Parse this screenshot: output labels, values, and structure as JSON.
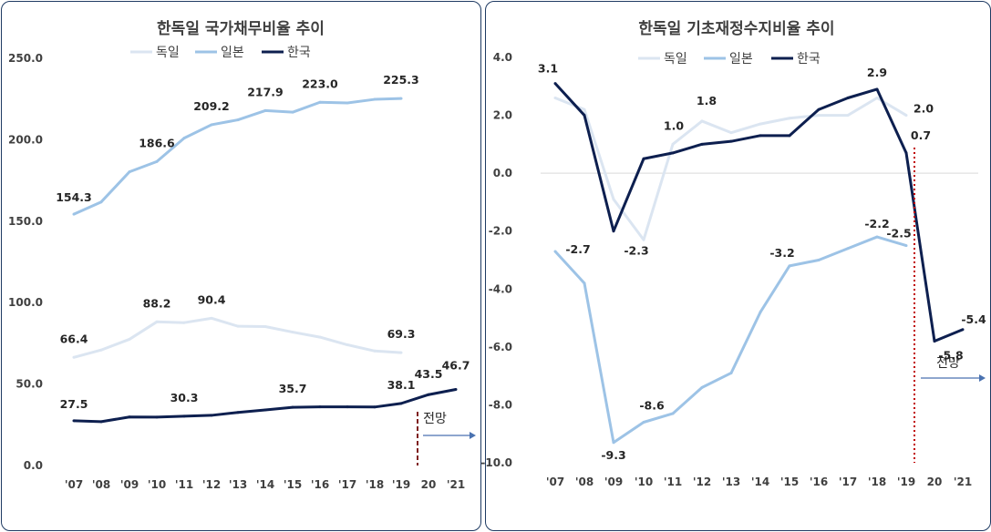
{
  "chart_data": [
    {
      "type": "line",
      "title": "한독일 국가채무비율 추이",
      "categories": [
        "'07",
        "'08",
        "'09",
        "'10",
        "'11",
        "'12",
        "'13",
        "'14",
        "'15",
        "'16",
        "'17",
        "'18",
        "'19",
        "20",
        "'21"
      ],
      "ylim": [
        0,
        250
      ],
      "yticks": [
        "0.0",
        "50.0",
        "100.0",
        "150.0",
        "200.0",
        "250.0"
      ],
      "grid": false,
      "legend_position": "top",
      "series": [
        {
          "name": "독일",
          "color": "#dbe5f1",
          "values": [
            66.4,
            70.9,
            77.5,
            88.2,
            87.7,
            90.4,
            85.5,
            85.3,
            81.9,
            78.8,
            74.1,
            70.3,
            69.3,
            null,
            null
          ],
          "labels": [
            [
              "66.4",
              0
            ],
            [
              "88.2",
              3
            ],
            [
              "90.4",
              5
            ],
            [
              "69.3",
              12
            ]
          ]
        },
        {
          "name": "일본",
          "color": "#9dc3e6",
          "values": [
            154.3,
            161.8,
            180.3,
            186.6,
            201.0,
            209.2,
            212.2,
            217.9,
            216.9,
            223.0,
            222.6,
            224.8,
            225.3,
            null,
            null
          ],
          "labels": [
            [
              "154.3",
              0
            ],
            [
              "186.6",
              3
            ],
            [
              "209.2",
              5
            ],
            [
              "217.9",
              7
            ],
            [
              "223.0",
              9
            ],
            [
              "225.3",
              12
            ]
          ]
        },
        {
          "name": "한국",
          "color": "#0d1f4f",
          "values": [
            27.5,
            26.9,
            29.8,
            29.7,
            30.3,
            30.8,
            32.6,
            34.1,
            35.7,
            36.0,
            36.0,
            35.9,
            38.1,
            43.5,
            46.7
          ],
          "labels": [
            [
              "27.5",
              0
            ],
            [
              "30.3",
              4
            ],
            [
              "35.7",
              8
            ],
            [
              "38.1",
              12
            ],
            [
              "43.5",
              13
            ],
            [
              "46.7",
              14
            ]
          ]
        }
      ],
      "annotation": "전망"
    },
    {
      "type": "line",
      "title": "한독일 기초재정수지비율 추이",
      "categories": [
        "'07",
        "'08",
        "'09",
        "'10",
        "'11",
        "'12",
        "'13",
        "'14",
        "'15",
        "'16",
        "'17",
        "'18",
        "'19",
        "20",
        "'21"
      ],
      "ylim": [
        -10,
        4
      ],
      "yticks": [
        "-10.0",
        "-8.0",
        "-6.0",
        "-4.0",
        "-2.0",
        "0.0",
        "2.0",
        "4.0"
      ],
      "grid": false,
      "legend_position": "top",
      "series": [
        {
          "name": "독일",
          "color": "#dbe5f1",
          "values": [
            2.6,
            2.2,
            -0.9,
            -2.3,
            1.0,
            1.8,
            1.4,
            1.7,
            1.9,
            2.0,
            2.0,
            2.6,
            2.0,
            null,
            null
          ],
          "labels": [
            [
              "-2.3",
              3
            ],
            [
              "1.0",
              4
            ],
            [
              "1.8",
              5
            ],
            [
              "2.0",
              12
            ]
          ]
        },
        {
          "name": "일본",
          "color": "#9dc3e6",
          "values": [
            -2.7,
            -3.8,
            -9.3,
            -8.6,
            -8.3,
            -7.4,
            -6.9,
            -4.8,
            -3.2,
            -3.0,
            -2.6,
            -2.2,
            -2.5,
            null,
            null
          ],
          "labels": [
            [
              "-2.7",
              0
            ],
            [
              "-9.3",
              2
            ],
            [
              "-8.6",
              3
            ],
            [
              "-3.2",
              8
            ],
            [
              "-2.2",
              11
            ],
            [
              "-2.5",
              12
            ]
          ]
        },
        {
          "name": "한국",
          "color": "#0d1f4f",
          "values": [
            3.1,
            2.0,
            -2.0,
            0.5,
            0.7,
            1.0,
            1.1,
            1.3,
            1.3,
            2.2,
            2.6,
            2.9,
            0.7,
            -5.8,
            -5.4
          ],
          "labels": [
            [
              "3.1",
              0
            ],
            [
              "2.9",
              11
            ],
            [
              "0.7",
              12
            ],
            [
              "-5.8",
              13
            ],
            [
              "-5.4",
              14
            ]
          ]
        }
      ],
      "annotation": "전망"
    }
  ]
}
